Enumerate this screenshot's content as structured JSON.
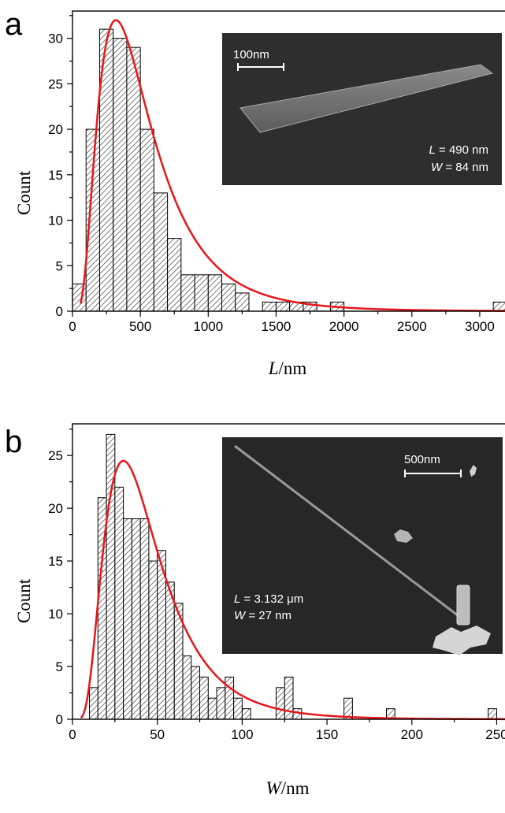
{
  "chart_data": [
    {
      "type": "bar",
      "panel_label": "a",
      "xlabel_var": "L",
      "xlabel_unit": "/nm",
      "ylabel": "Count",
      "xlim": [
        0,
        3250
      ],
      "ylim": [
        0,
        33
      ],
      "xticks": [
        0,
        500,
        1000,
        1500,
        2000,
        2500,
        3000
      ],
      "yticks": [
        0,
        5,
        10,
        15,
        20,
        25,
        30
      ],
      "bin_width": 100,
      "bins": [
        {
          "x": 50,
          "count": 3
        },
        {
          "x": 150,
          "count": 20
        },
        {
          "x": 250,
          "count": 31
        },
        {
          "x": 350,
          "count": 30
        },
        {
          "x": 450,
          "count": 29
        },
        {
          "x": 550,
          "count": 20
        },
        {
          "x": 650,
          "count": 13
        },
        {
          "x": 750,
          "count": 8
        },
        {
          "x": 850,
          "count": 4
        },
        {
          "x": 950,
          "count": 4
        },
        {
          "x": 1050,
          "count": 4
        },
        {
          "x": 1150,
          "count": 3
        },
        {
          "x": 1250,
          "count": 2
        },
        {
          "x": 1350,
          "count": 0
        },
        {
          "x": 1450,
          "count": 1
        },
        {
          "x": 1550,
          "count": 1
        },
        {
          "x": 1650,
          "count": 1
        },
        {
          "x": 1750,
          "count": 1
        },
        {
          "x": 1850,
          "count": 0
        },
        {
          "x": 1950,
          "count": 1
        },
        {
          "x": 3150,
          "count": 1
        }
      ],
      "fit_color": "#e8161b",
      "fit_curve": {
        "peak_x": 320,
        "peak_y": 32,
        "sigma": 0.62,
        "min_x": 60
      },
      "inset": {
        "scale_label": "100nm",
        "text_line1_var": "L",
        "text_line1_rest": " = 490 nm",
        "text_line2_var": "W",
        "text_line2_rest": " = 84 nm"
      }
    },
    {
      "type": "bar",
      "panel_label": "b",
      "xlabel_var": "W",
      "xlabel_unit": "/nm",
      "ylabel": "Count",
      "xlim": [
        0,
        260
      ],
      "ylim": [
        0,
        28
      ],
      "xticks": [
        0,
        50,
        100,
        150,
        200,
        250
      ],
      "yticks": [
        0,
        5,
        10,
        15,
        20,
        25
      ],
      "bin_width": 5,
      "bins": [
        {
          "x": 12.5,
          "count": 3
        },
        {
          "x": 17.5,
          "count": 21
        },
        {
          "x": 22.5,
          "count": 27
        },
        {
          "x": 27.5,
          "count": 22
        },
        {
          "x": 32.5,
          "count": 19
        },
        {
          "x": 37.5,
          "count": 19
        },
        {
          "x": 42.5,
          "count": 19
        },
        {
          "x": 47.5,
          "count": 15
        },
        {
          "x": 52.5,
          "count": 16
        },
        {
          "x": 57.5,
          "count": 13
        },
        {
          "x": 62.5,
          "count": 11
        },
        {
          "x": 67.5,
          "count": 6
        },
        {
          "x": 72.5,
          "count": 5
        },
        {
          "x": 77.5,
          "count": 4
        },
        {
          "x": 82.5,
          "count": 2
        },
        {
          "x": 87.5,
          "count": 3
        },
        {
          "x": 92.5,
          "count": 4
        },
        {
          "x": 97.5,
          "count": 2
        },
        {
          "x": 102.5,
          "count": 1
        },
        {
          "x": 107.5,
          "count": 0
        },
        {
          "x": 122.5,
          "count": 3
        },
        {
          "x": 127.5,
          "count": 4
        },
        {
          "x": 132.5,
          "count": 1
        },
        {
          "x": 162.5,
          "count": 2
        },
        {
          "x": 187.5,
          "count": 1
        },
        {
          "x": 247.5,
          "count": 1
        }
      ],
      "fit_color": "#e8161b",
      "fit_curve": {
        "peak_x": 30,
        "peak_y": 24.5,
        "sigma": 0.55,
        "min_x": 5
      },
      "inset": {
        "scale_label": "500nm",
        "text_line1_var": "L",
        "text_line1_rest": " = 3.132 μm",
        "text_line2_var": "W",
        "text_line2_rest": " = 27 nm"
      }
    }
  ]
}
